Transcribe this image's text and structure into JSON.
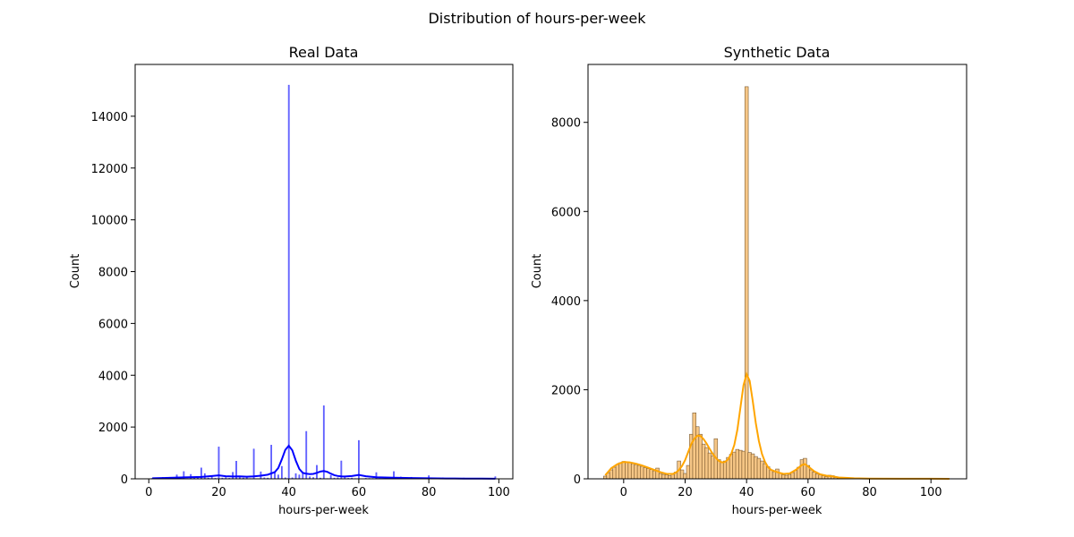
{
  "figure": {
    "suptitle": "Distribution of hours-per-week"
  },
  "chart_data": [
    {
      "type": "bar",
      "title": "Real Data",
      "xlabel": "hours-per-week",
      "ylabel": "Count",
      "xlim": [
        -3.9,
        104
      ],
      "ylim": [
        0,
        16000
      ],
      "xticks": [
        0,
        20,
        40,
        60,
        80,
        100
      ],
      "yticks": [
        0,
        2000,
        4000,
        6000,
        8000,
        10000,
        12000,
        14000
      ],
      "bar_color": "#4a4aff",
      "kde_color": "#0000ff",
      "bar_width": 0.3,
      "bars": [
        {
          "x": 1,
          "y": 20
        },
        {
          "x": 2,
          "y": 30
        },
        {
          "x": 3,
          "y": 40
        },
        {
          "x": 4,
          "y": 55
        },
        {
          "x": 5,
          "y": 60
        },
        {
          "x": 6,
          "y": 60
        },
        {
          "x": 7,
          "y": 30
        },
        {
          "x": 8,
          "y": 150
        },
        {
          "x": 9,
          "y": 20
        },
        {
          "x": 10,
          "y": 280
        },
        {
          "x": 11,
          "y": 10
        },
        {
          "x": 12,
          "y": 170
        },
        {
          "x": 13,
          "y": 25
        },
        {
          "x": 14,
          "y": 35
        },
        {
          "x": 15,
          "y": 420
        },
        {
          "x": 16,
          "y": 200
        },
        {
          "x": 17,
          "y": 30
        },
        {
          "x": 18,
          "y": 80
        },
        {
          "x": 19,
          "y": 20
        },
        {
          "x": 20,
          "y": 1230
        },
        {
          "x": 21,
          "y": 30
        },
        {
          "x": 22,
          "y": 50
        },
        {
          "x": 23,
          "y": 20
        },
        {
          "x": 24,
          "y": 250
        },
        {
          "x": 25,
          "y": 680
        },
        {
          "x": 26,
          "y": 40
        },
        {
          "x": 27,
          "y": 30
        },
        {
          "x": 28,
          "y": 90
        },
        {
          "x": 29,
          "y": 10
        },
        {
          "x": 30,
          "y": 1150
        },
        {
          "x": 31,
          "y": 5
        },
        {
          "x": 32,
          "y": 270
        },
        {
          "x": 33,
          "y": 40
        },
        {
          "x": 34,
          "y": 30
        },
        {
          "x": 35,
          "y": 1300
        },
        {
          "x": 36,
          "y": 230
        },
        {
          "x": 37,
          "y": 150
        },
        {
          "x": 38,
          "y": 480
        },
        {
          "x": 39,
          "y": 40
        },
        {
          "x": 40,
          "y": 15200
        },
        {
          "x": 41,
          "y": 40
        },
        {
          "x": 42,
          "y": 200
        },
        {
          "x": 43,
          "y": 150
        },
        {
          "x": 44,
          "y": 210
        },
        {
          "x": 45,
          "y": 1830
        },
        {
          "x": 46,
          "y": 80
        },
        {
          "x": 47,
          "y": 50
        },
        {
          "x": 48,
          "y": 520
        },
        {
          "x": 49,
          "y": 30
        },
        {
          "x": 50,
          "y": 2820
        },
        {
          "x": 51,
          "y": 10
        },
        {
          "x": 52,
          "y": 130
        },
        {
          "x": 53,
          "y": 30
        },
        {
          "x": 54,
          "y": 40
        },
        {
          "x": 55,
          "y": 690
        },
        {
          "x": 56,
          "y": 90
        },
        {
          "x": 57,
          "y": 20
        },
        {
          "x": 58,
          "y": 30
        },
        {
          "x": 59,
          "y": 10
        },
        {
          "x": 60,
          "y": 1480
        },
        {
          "x": 61,
          "y": 5
        },
        {
          "x": 62,
          "y": 20
        },
        {
          "x": 63,
          "y": 15
        },
        {
          "x": 64,
          "y": 15
        },
        {
          "x": 65,
          "y": 240
        },
        {
          "x": 66,
          "y": 15
        },
        {
          "x": 67,
          "y": 5
        },
        {
          "x": 68,
          "y": 15
        },
        {
          "x": 70,
          "y": 280
        },
        {
          "x": 72,
          "y": 70
        },
        {
          "x": 75,
          "y": 60
        },
        {
          "x": 77,
          "y": 5
        },
        {
          "x": 80,
          "y": 120
        },
        {
          "x": 84,
          "y": 40
        },
        {
          "x": 85,
          "y": 10
        },
        {
          "x": 90,
          "y": 30
        },
        {
          "x": 98,
          "y": 10
        },
        {
          "x": 99,
          "y": 80
        }
      ],
      "kde": [
        [
          1,
          20
        ],
        [
          5,
          35
        ],
        [
          10,
          55
        ],
        [
          15,
          75
        ],
        [
          18,
          110
        ],
        [
          20,
          135
        ],
        [
          22,
          100
        ],
        [
          24,
          90
        ],
        [
          26,
          95
        ],
        [
          28,
          80
        ],
        [
          30,
          95
        ],
        [
          32,
          120
        ],
        [
          34,
          160
        ],
        [
          36,
          260
        ],
        [
          37,
          420
        ],
        [
          38,
          750
        ],
        [
          39,
          1120
        ],
        [
          40,
          1280
        ],
        [
          41,
          1100
        ],
        [
          42,
          700
        ],
        [
          43,
          380
        ],
        [
          44,
          230
        ],
        [
          45,
          200
        ],
        [
          46,
          180
        ],
        [
          47,
          190
        ],
        [
          48,
          230
        ],
        [
          49,
          280
        ],
        [
          50,
          300
        ],
        [
          51,
          270
        ],
        [
          52,
          200
        ],
        [
          53,
          140
        ],
        [
          54,
          110
        ],
        [
          55,
          95
        ],
        [
          56,
          90
        ],
        [
          58,
          110
        ],
        [
          60,
          150
        ],
        [
          62,
          100
        ],
        [
          65,
          60
        ],
        [
          70,
          45
        ],
        [
          75,
          30
        ],
        [
          80,
          22
        ],
        [
          85,
          15
        ],
        [
          90,
          10
        ],
        [
          95,
          8
        ],
        [
          99,
          6
        ]
      ]
    },
    {
      "type": "bar",
      "title": "Synthetic Data",
      "xlabel": "hours-per-week",
      "ylabel": "Count",
      "xlim": [
        -11.6,
        111.6
      ],
      "ylim": [
        0,
        9300
      ],
      "xticks": [
        0,
        20,
        40,
        60,
        80,
        100
      ],
      "yticks": [
        0,
        2000,
        4000,
        6000,
        8000
      ],
      "bar_fill": "#f5bd72",
      "bar_edge": "#7a5a32",
      "kde_color": "#ffa500",
      "bin_width": 1.12,
      "bars": [
        {
          "x": -6,
          "y": 60
        },
        {
          "x": -5,
          "y": 130
        },
        {
          "x": -4,
          "y": 200
        },
        {
          "x": -3,
          "y": 260
        },
        {
          "x": -2,
          "y": 320
        },
        {
          "x": -1,
          "y": 360
        },
        {
          "x": 0,
          "y": 390
        },
        {
          "x": 1,
          "y": 380
        },
        {
          "x": 2,
          "y": 370
        },
        {
          "x": 3,
          "y": 340
        },
        {
          "x": 4,
          "y": 320
        },
        {
          "x": 5,
          "y": 300
        },
        {
          "x": 6,
          "y": 280
        },
        {
          "x": 7,
          "y": 250
        },
        {
          "x": 8,
          "y": 230
        },
        {
          "x": 9,
          "y": 210
        },
        {
          "x": 10,
          "y": 180
        },
        {
          "x": 11,
          "y": 240
        },
        {
          "x": 12,
          "y": 120
        },
        {
          "x": 13,
          "y": 100
        },
        {
          "x": 14,
          "y": 90
        },
        {
          "x": 15,
          "y": 70
        },
        {
          "x": 16,
          "y": 100
        },
        {
          "x": 17,
          "y": 150
        },
        {
          "x": 18,
          "y": 400
        },
        {
          "x": 19,
          "y": 200
        },
        {
          "x": 20,
          "y": 120
        },
        {
          "x": 21,
          "y": 300
        },
        {
          "x": 22,
          "y": 1000
        },
        {
          "x": 23,
          "y": 1480
        },
        {
          "x": 24,
          "y": 1170
        },
        {
          "x": 25,
          "y": 1000
        },
        {
          "x": 26,
          "y": 780
        },
        {
          "x": 27,
          "y": 700
        },
        {
          "x": 28,
          "y": 580
        },
        {
          "x": 29,
          "y": 510
        },
        {
          "x": 30,
          "y": 900
        },
        {
          "x": 31,
          "y": 430
        },
        {
          "x": 32,
          "y": 370
        },
        {
          "x": 33,
          "y": 400
        },
        {
          "x": 34,
          "y": 480
        },
        {
          "x": 35,
          "y": 550
        },
        {
          "x": 36,
          "y": 600
        },
        {
          "x": 37,
          "y": 660
        },
        {
          "x": 38,
          "y": 640
        },
        {
          "x": 39,
          "y": 620
        },
        {
          "x": 40,
          "y": 8800
        },
        {
          "x": 41,
          "y": 590
        },
        {
          "x": 42,
          "y": 560
        },
        {
          "x": 43,
          "y": 500
        },
        {
          "x": 44,
          "y": 460
        },
        {
          "x": 45,
          "y": 400
        },
        {
          "x": 46,
          "y": 340
        },
        {
          "x": 47,
          "y": 270
        },
        {
          "x": 48,
          "y": 200
        },
        {
          "x": 49,
          "y": 160
        },
        {
          "x": 50,
          "y": 220
        },
        {
          "x": 51,
          "y": 130
        },
        {
          "x": 52,
          "y": 90
        },
        {
          "x": 53,
          "y": 80
        },
        {
          "x": 54,
          "y": 100
        },
        {
          "x": 55,
          "y": 140
        },
        {
          "x": 56,
          "y": 190
        },
        {
          "x": 57,
          "y": 260
        },
        {
          "x": 58,
          "y": 430
        },
        {
          "x": 59,
          "y": 460
        },
        {
          "x": 60,
          "y": 300
        },
        {
          "x": 61,
          "y": 200
        },
        {
          "x": 62,
          "y": 150
        },
        {
          "x": 63,
          "y": 110
        },
        {
          "x": 64,
          "y": 90
        },
        {
          "x": 65,
          "y": 70
        },
        {
          "x": 66,
          "y": 50
        },
        {
          "x": 67,
          "y": 80
        },
        {
          "x": 68,
          "y": 70
        },
        {
          "x": 69,
          "y": 30
        },
        {
          "x": 70,
          "y": 20
        },
        {
          "x": 72,
          "y": 15
        },
        {
          "x": 75,
          "y": 10
        },
        {
          "x": 80,
          "y": 8
        },
        {
          "x": 85,
          "y": 6
        },
        {
          "x": 90,
          "y": 5
        },
        {
          "x": 95,
          "y": 4
        },
        {
          "x": 100,
          "y": 3
        },
        {
          "x": 105,
          "y": 3
        }
      ],
      "kde": [
        [
          -6,
          80
        ],
        [
          -4,
          240
        ],
        [
          -2,
          330
        ],
        [
          0,
          380
        ],
        [
          2,
          370
        ],
        [
          4,
          340
        ],
        [
          6,
          300
        ],
        [
          8,
          250
        ],
        [
          10,
          200
        ],
        [
          12,
          150
        ],
        [
          14,
          110
        ],
        [
          16,
          110
        ],
        [
          17,
          140
        ],
        [
          18,
          200
        ],
        [
          19,
          290
        ],
        [
          20,
          420
        ],
        [
          21,
          600
        ],
        [
          22,
          780
        ],
        [
          23,
          900
        ],
        [
          24,
          970
        ],
        [
          25,
          960
        ],
        [
          26,
          890
        ],
        [
          27,
          790
        ],
        [
          28,
          670
        ],
        [
          29,
          560
        ],
        [
          30,
          470
        ],
        [
          31,
          400
        ],
        [
          32,
          370
        ],
        [
          33,
          380
        ],
        [
          34,
          440
        ],
        [
          35,
          560
        ],
        [
          36,
          760
        ],
        [
          37,
          1100
        ],
        [
          38,
          1600
        ],
        [
          39,
          2100
        ],
        [
          40,
          2350
        ],
        [
          41,
          2200
        ],
        [
          42,
          1750
        ],
        [
          43,
          1250
        ],
        [
          44,
          850
        ],
        [
          45,
          560
        ],
        [
          46,
          380
        ],
        [
          47,
          260
        ],
        [
          48,
          200
        ],
        [
          50,
          150
        ],
        [
          52,
          110
        ],
        [
          54,
          120
        ],
        [
          56,
          200
        ],
        [
          58,
          310
        ],
        [
          59,
          330
        ],
        [
          60,
          280
        ],
        [
          62,
          170
        ],
        [
          64,
          100
        ],
        [
          66,
          70
        ],
        [
          68,
          55
        ],
        [
          70,
          30
        ],
        [
          75,
          12
        ],
        [
          80,
          6
        ],
        [
          90,
          3
        ],
        [
          100,
          2
        ],
        [
          106,
          1
        ]
      ]
    }
  ]
}
